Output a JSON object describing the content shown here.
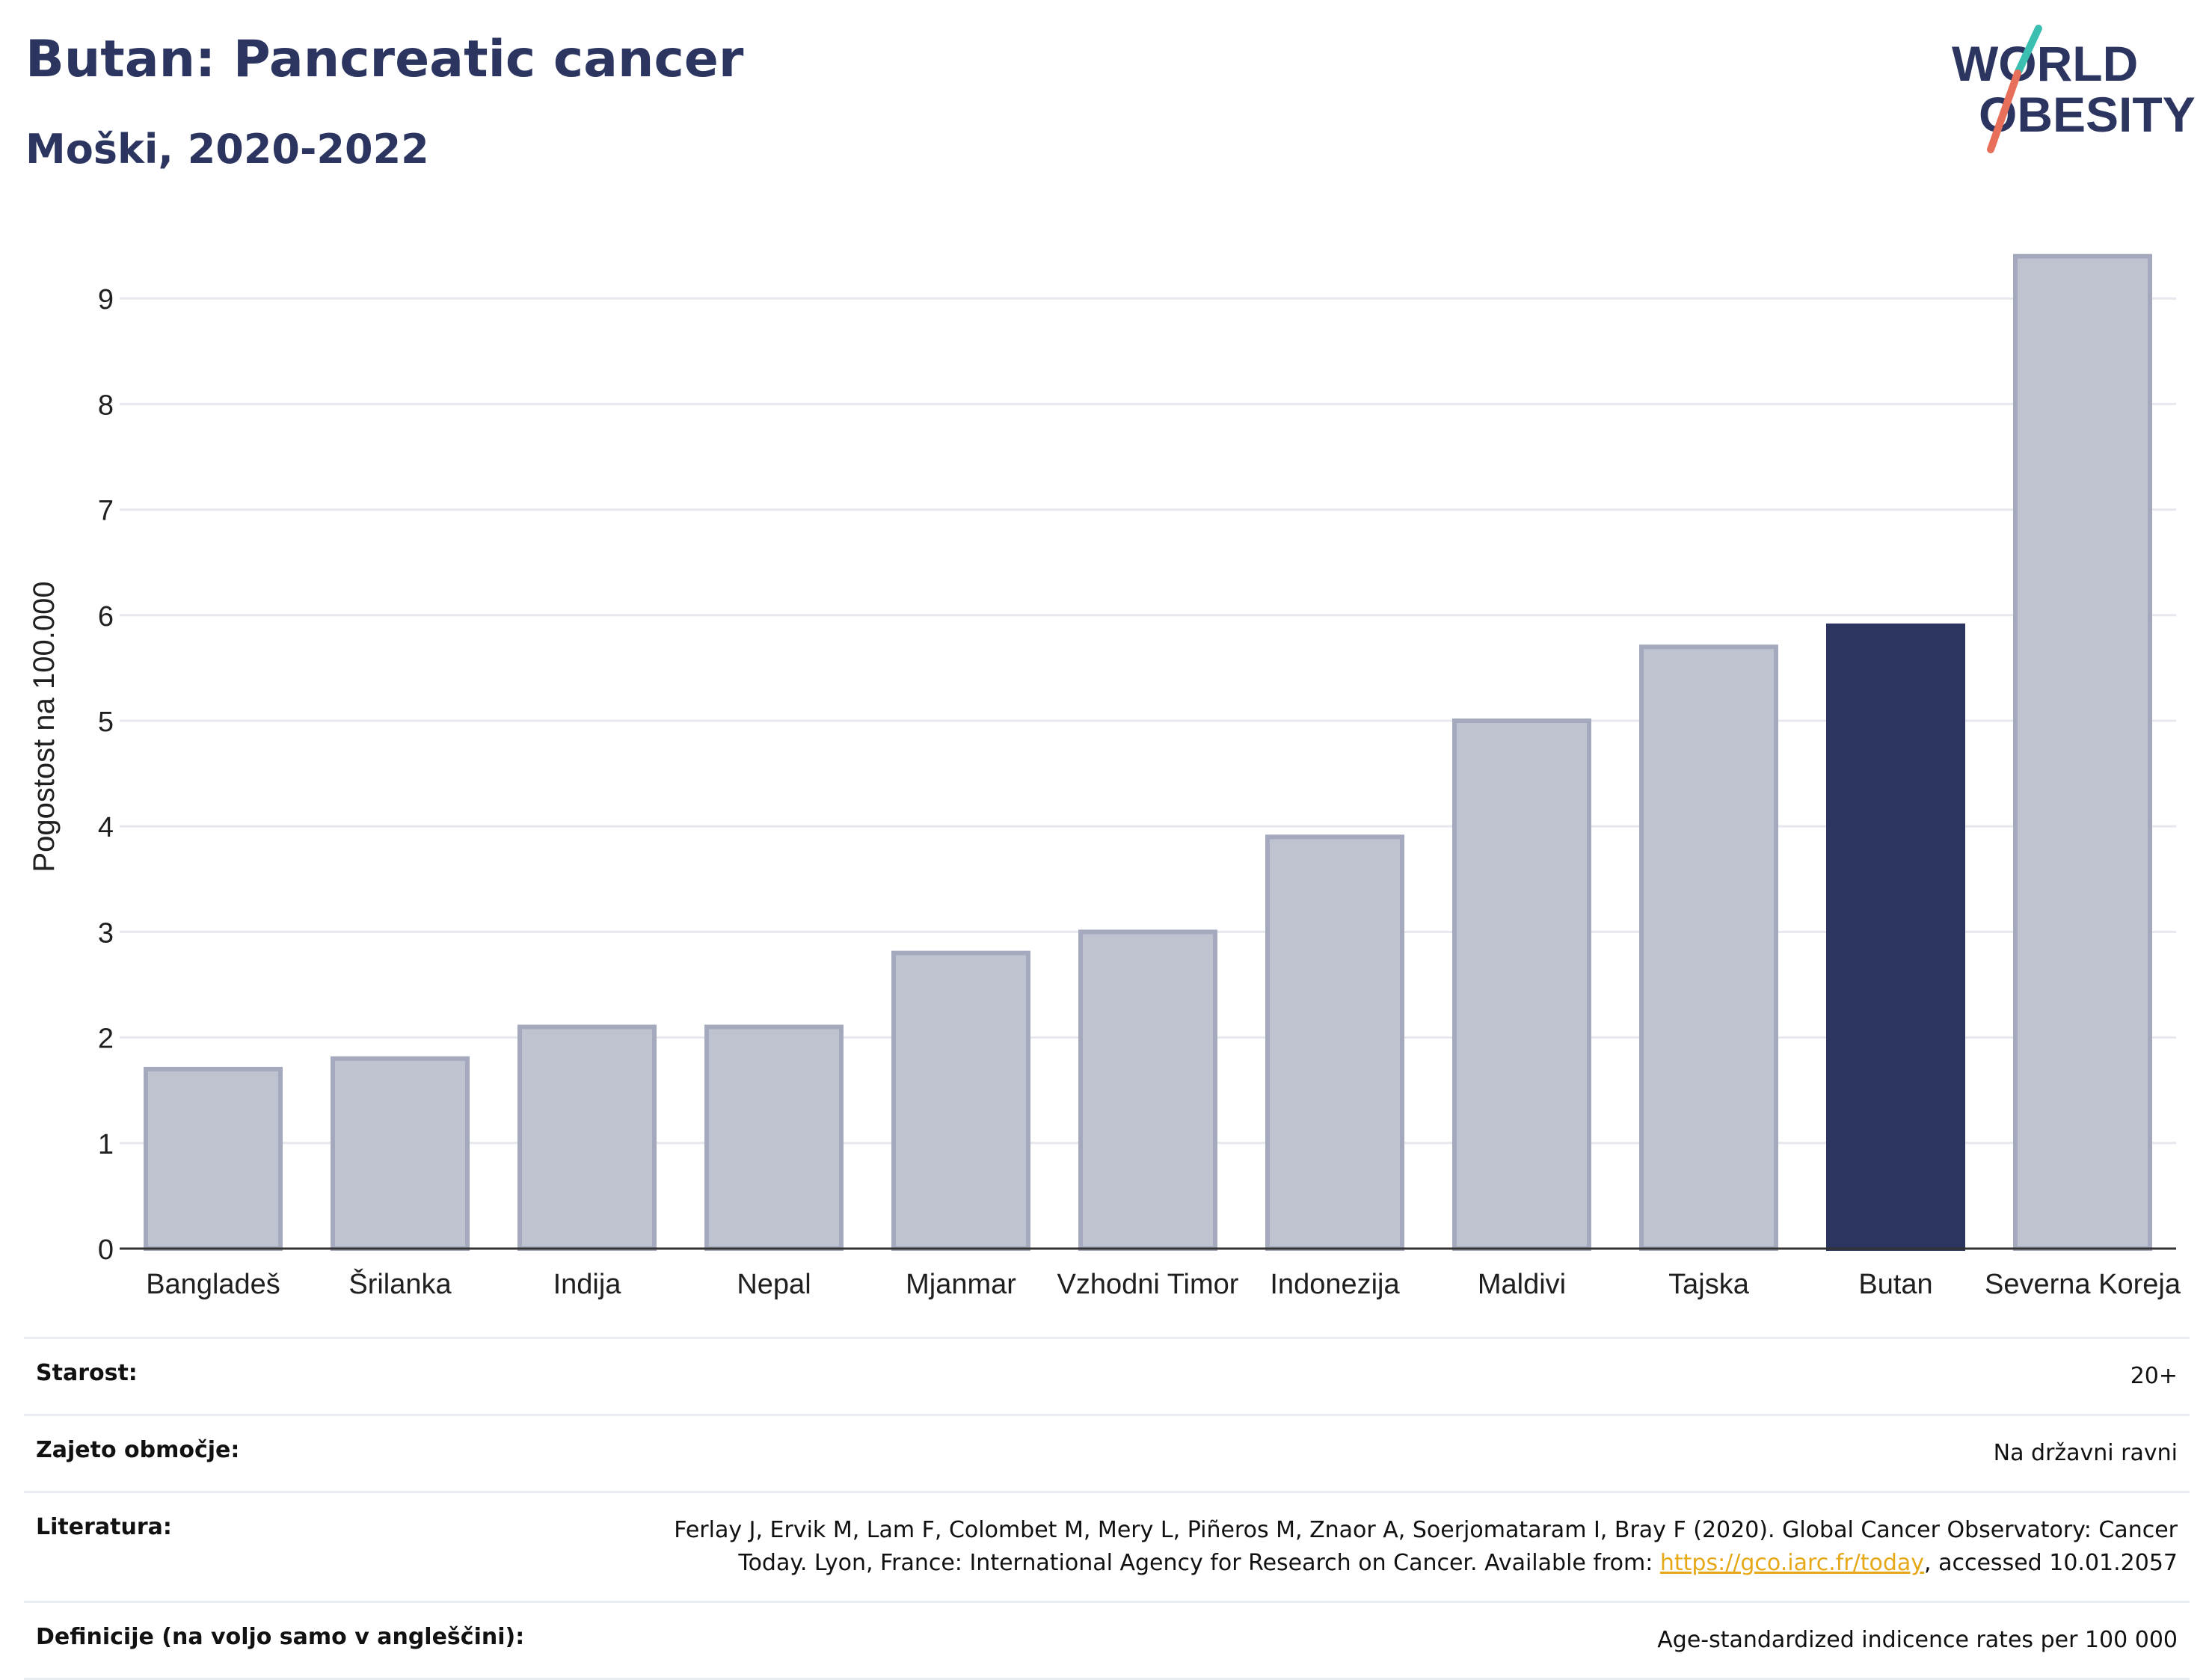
{
  "header": {
    "title": "Butan: Pancreatic cancer",
    "subtitle": "Moški, 2020-2022",
    "logo_line1": "WORLD",
    "logo_line2": "OBESITY"
  },
  "colors": {
    "title": "#2b3560",
    "highlight_bar": "#2b3560",
    "bar": "#bfc3d0",
    "bar_border": "#a4a9bd",
    "link": "#e6a817",
    "logo_slash_teal": "#3bbfb0",
    "logo_slash_red": "#e8705a"
  },
  "chart_data": {
    "type": "bar",
    "title": "Butan: Pancreatic cancer",
    "subtitle": "Moški, 2020-2022",
    "ylabel": "Pogostost na 100.000",
    "xlabel": "",
    "categories": [
      "Bangladeš",
      "Šrilanka",
      "Indija",
      "Nepal",
      "Mjanmar",
      "Vzhodni Timor",
      "Indonezija",
      "Maldivi",
      "Tajska",
      "Butan",
      "Severna Koreja"
    ],
    "values": [
      1.7,
      1.8,
      2.1,
      2.1,
      2.8,
      3.0,
      3.9,
      5.0,
      5.7,
      5.9,
      9.4
    ],
    "highlight": "Butan",
    "ylim": [
      0,
      9.6
    ],
    "yticks": [
      0,
      1,
      2,
      3,
      4,
      5,
      6,
      7,
      8,
      9
    ],
    "grid": true,
    "legend": "none"
  },
  "info": {
    "age_label": "Starost:",
    "age_value": "20+",
    "area_label": "Zajeto območje:",
    "area_value": "Na državni ravni",
    "lit_label": "Literatura:",
    "lit_text1": "Ferlay J, Ervik M, Lam F, Colombet M, Mery L, Piñeros M, Znaor A, Soerjomataram I, Bray F (2020). Global Cancer Observatory: Cancer Today. Lyon, France: International Agency for Research on Cancer. Available from: ",
    "lit_link": "https://gco.iarc.fr/today",
    "lit_text2": ", accessed 10.01.2057",
    "def_label": "Definicije (na voljo samo v angleščini):",
    "def_value": "Age-standardized indicence rates per 100 000"
  }
}
